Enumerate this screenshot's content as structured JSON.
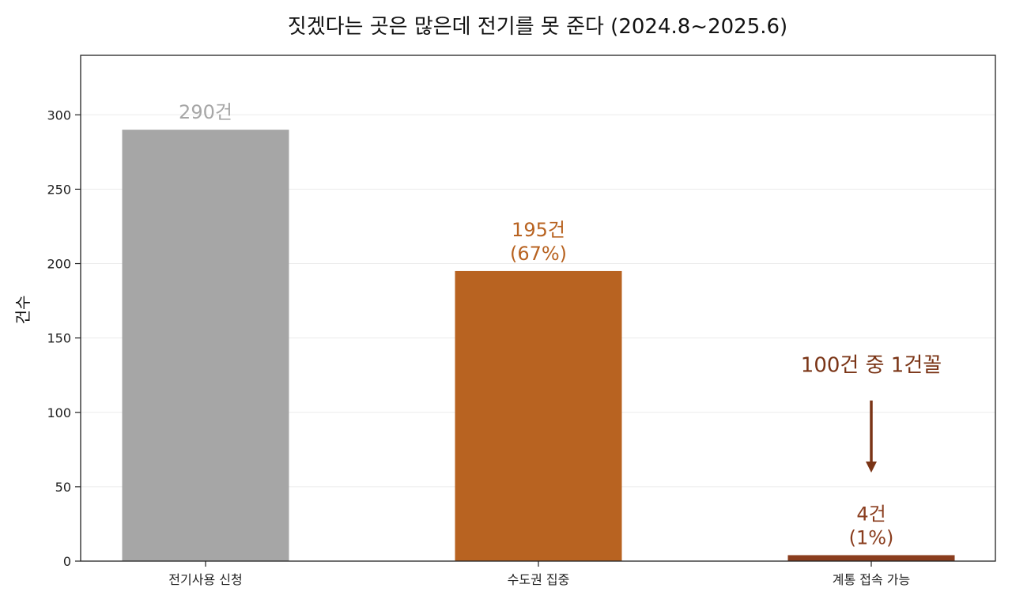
{
  "chart_data": {
    "type": "bar",
    "title": "짓겠다는 곳은 많은데 전기를 못 준다 (2024.8~2025.6)",
    "xlabel": "",
    "ylabel": "건수",
    "ylim": [
      0,
      340
    ],
    "yticks": [
      "0",
      "50",
      "100",
      "150",
      "200",
      "250",
      "300"
    ],
    "categories": [
      "전기사용 신청",
      "수도권 집중",
      "계통 접속 가능"
    ],
    "values": [
      290,
      195,
      4
    ],
    "colors": [
      "#a6a6a6",
      "#b86321",
      "#8a3d1e"
    ],
    "data_labels": [
      [
        "290건"
      ],
      [
        "195건",
        "(67%)"
      ],
      [
        "4건",
        "(1%)"
      ]
    ],
    "data_label_colors": [
      "#a6a6a6",
      "#b86321",
      "#8a3d1e"
    ],
    "grid": "y",
    "annotation": {
      "text": "100건 중 1건꼴",
      "color": "#7a3416",
      "arrow_from_y": 108,
      "arrow_to_y": 60,
      "target_category": "계통 접속 가능"
    }
  }
}
